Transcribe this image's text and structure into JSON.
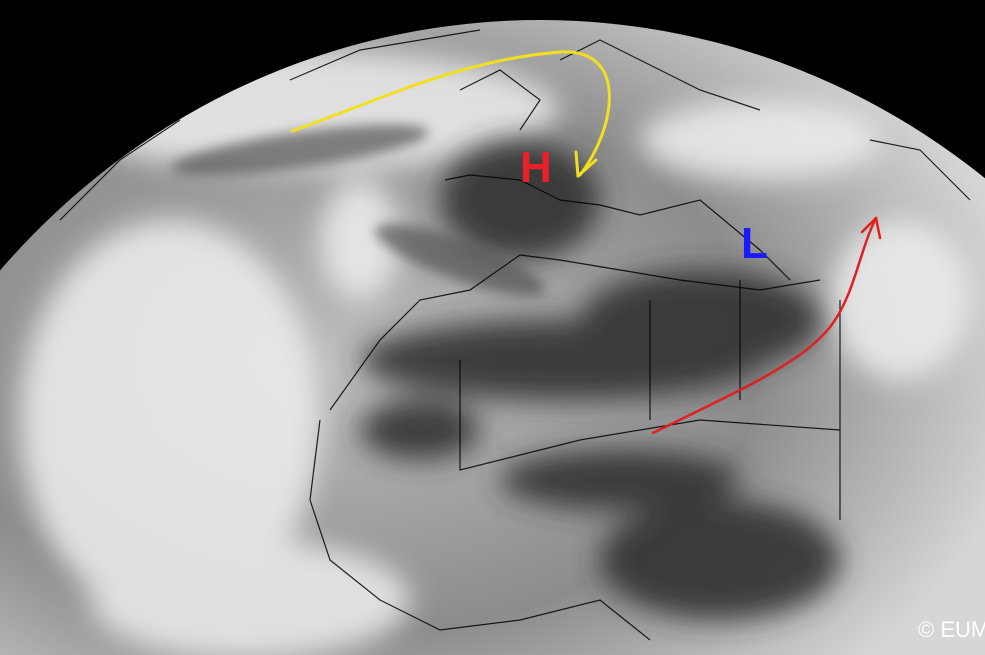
{
  "image": {
    "kind": "satellite water vapour image",
    "annotations": {
      "high_pressure": {
        "label": "H",
        "color": "#e8202a"
      },
      "low_pressure": {
        "label": "L",
        "color": "#1a1aff"
      },
      "jet_arrow_yellow": {
        "color": "#f2e020"
      },
      "jet_arrow_red": {
        "color": "#e02020"
      }
    },
    "copyright": "© EUM"
  }
}
